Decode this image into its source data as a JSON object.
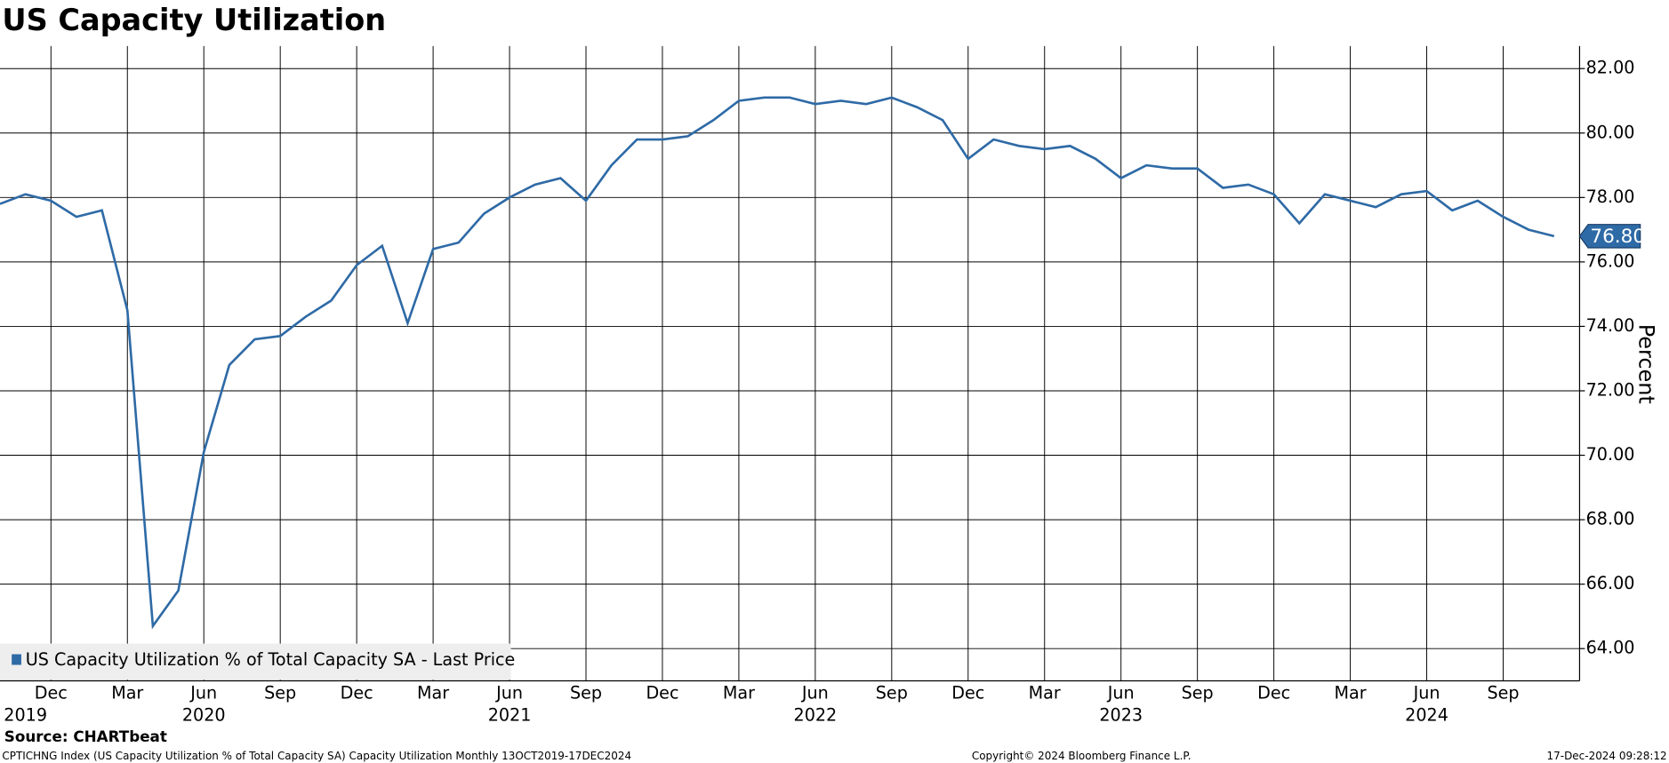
{
  "chart_data": {
    "type": "line",
    "title": "US Capacity Utilization",
    "y_axis_label": "Percent",
    "x": [
      "2019-10",
      "2019-11",
      "2019-12",
      "2020-01",
      "2020-02",
      "2020-03",
      "2020-04",
      "2020-05",
      "2020-06",
      "2020-07",
      "2020-08",
      "2020-09",
      "2020-10",
      "2020-11",
      "2020-12",
      "2021-01",
      "2021-02",
      "2021-03",
      "2021-04",
      "2021-05",
      "2021-06",
      "2021-07",
      "2021-08",
      "2021-09",
      "2021-10",
      "2021-11",
      "2021-12",
      "2022-01",
      "2022-02",
      "2022-03",
      "2022-04",
      "2022-05",
      "2022-06",
      "2022-07",
      "2022-08",
      "2022-09",
      "2022-10",
      "2022-11",
      "2022-12",
      "2023-01",
      "2023-02",
      "2023-03",
      "2023-04",
      "2023-05",
      "2023-06",
      "2023-07",
      "2023-08",
      "2023-09",
      "2023-10",
      "2023-11",
      "2023-12",
      "2024-01",
      "2024-02",
      "2024-03",
      "2024-04",
      "2024-05",
      "2024-06",
      "2024-07",
      "2024-08",
      "2024-09",
      "2024-10",
      "2024-11"
    ],
    "series": [
      {
        "name": "US Capacity Utilization % of Total Capacity SA - Last Price",
        "color": "#2e6aa6",
        "values": [
          77.8,
          78.1,
          77.9,
          77.4,
          77.6,
          74.5,
          64.7,
          65.8,
          70.1,
          72.8,
          73.6,
          73.7,
          74.3,
          74.8,
          75.9,
          76.5,
          74.1,
          76.4,
          76.6,
          77.5,
          78.0,
          78.4,
          78.6,
          77.9,
          79.0,
          79.8,
          79.8,
          79.9,
          80.4,
          81.0,
          81.1,
          81.1,
          80.9,
          81.0,
          80.9,
          81.1,
          80.8,
          80.4,
          79.2,
          79.8,
          79.6,
          79.5,
          79.6,
          79.2,
          78.6,
          79.0,
          78.9,
          78.9,
          78.3,
          78.4,
          78.1,
          77.2,
          78.1,
          77.9,
          77.7,
          78.1,
          78.2,
          77.6,
          77.9,
          77.4,
          77.0,
          76.8
        ]
      }
    ],
    "last_price_label": "76.80",
    "xlim": [
      "2019-10",
      "2024-12"
    ],
    "xticks": [
      {
        "value": "2019-12",
        "label": "Dec"
      },
      {
        "value": "2020-03",
        "label": "Mar"
      },
      {
        "value": "2020-06",
        "label": "Jun"
      },
      {
        "value": "2020-09",
        "label": "Sep"
      },
      {
        "value": "2020-12",
        "label": "Dec"
      },
      {
        "value": "2021-03",
        "label": "Mar"
      },
      {
        "value": "2021-06",
        "label": "Jun"
      },
      {
        "value": "2021-09",
        "label": "Sep"
      },
      {
        "value": "2021-12",
        "label": "Dec"
      },
      {
        "value": "2022-03",
        "label": "Mar"
      },
      {
        "value": "2022-06",
        "label": "Jun"
      },
      {
        "value": "2022-09",
        "label": "Sep"
      },
      {
        "value": "2022-12",
        "label": "Dec"
      },
      {
        "value": "2023-03",
        "label": "Mar"
      },
      {
        "value": "2023-06",
        "label": "Jun"
      },
      {
        "value": "2023-09",
        "label": "Sep"
      },
      {
        "value": "2023-12",
        "label": "Dec"
      },
      {
        "value": "2024-03",
        "label": "Mar"
      },
      {
        "value": "2024-06",
        "label": "Jun"
      },
      {
        "value": "2024-09",
        "label": "Sep"
      }
    ],
    "year_labels": [
      {
        "value": "2019-11",
        "label": "2019"
      },
      {
        "value": "2020-06",
        "label": "2020"
      },
      {
        "value": "2021-06",
        "label": "2021"
      },
      {
        "value": "2022-06",
        "label": "2022"
      },
      {
        "value": "2023-06",
        "label": "2023"
      },
      {
        "value": "2024-06",
        "label": "2024"
      }
    ],
    "ylim": [
      63.0,
      82.7
    ],
    "yticks": [
      {
        "value": 64,
        "label": "64.00"
      },
      {
        "value": 66,
        "label": "66.00"
      },
      {
        "value": 68,
        "label": "68.00"
      },
      {
        "value": 70,
        "label": "70.00"
      },
      {
        "value": 72,
        "label": "72.00"
      },
      {
        "value": 74,
        "label": "74.00"
      },
      {
        "value": 76,
        "label": "76.00"
      },
      {
        "value": 78,
        "label": "78.00"
      },
      {
        "value": 80,
        "label": "80.00"
      },
      {
        "value": 82,
        "label": "82.00"
      }
    ],
    "grid": true,
    "legend": "bottom-left",
    "source": "Source: CHARTbeat",
    "footer_left": "CPTICHNG Index (US Capacity Utilization % of Total Capacity SA) Capacity Utilization  Monthly 13OCT2019-17DEC2024",
    "footer_center": "Copyright© 2024 Bloomberg Finance L.P.",
    "footer_right": "17-Dec-2024 09:28:12"
  }
}
